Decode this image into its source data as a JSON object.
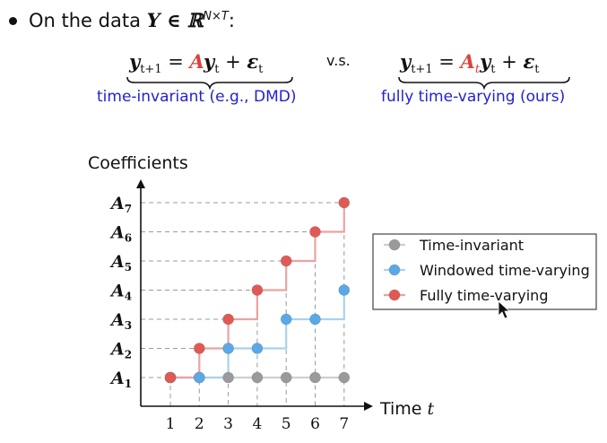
{
  "header": {
    "intro_text": "On the data",
    "intro_math": "Y ∈ ℝ",
    "intro_sup": "N×T",
    "intro_colon": ":"
  },
  "equations": {
    "left": {
      "lhs": "y",
      "lhs_sub": "t+1",
      "eq": " = ",
      "coef": "A",
      "rhs_var": "y",
      "rhs_sub": "t",
      "plus": " + ",
      "noise": "ε",
      "noise_sub": "t",
      "label": "time-invariant (e.g., DMD)"
    },
    "vs": "v.s.",
    "right": {
      "lhs": "y",
      "lhs_sub": "t+1",
      "eq": " = ",
      "coef": "A",
      "coef_sub": "t",
      "rhs_var": "y",
      "rhs_sub": "t",
      "plus": " + ",
      "noise": "ε",
      "noise_sub": "t",
      "label": "fully time-varying (ours)"
    }
  },
  "chart_data": {
    "type": "line",
    "title": "",
    "ylabel": "Coefficients",
    "xlabel": "Time",
    "xlabel_var": "t",
    "x": [
      1,
      2,
      3,
      4,
      5,
      6,
      7
    ],
    "yticks": [
      {
        "base": "A",
        "sub": "1"
      },
      {
        "base": "A",
        "sub": "2"
      },
      {
        "base": "A",
        "sub": "3"
      },
      {
        "base": "A",
        "sub": "4"
      },
      {
        "base": "A",
        "sub": "5"
      },
      {
        "base": "A",
        "sub": "6"
      },
      {
        "base": "A",
        "sub": "7"
      }
    ],
    "ylim": [
      1,
      7
    ],
    "series": [
      {
        "name": "Time-invariant",
        "values": [
          1,
          1,
          1,
          1,
          1,
          1,
          1
        ],
        "color": "#9a9a9a",
        "line_color": "#cfcfcf"
      },
      {
        "name": "Windowed time-varying",
        "values": [
          1,
          1,
          2,
          2,
          3,
          3,
          4
        ],
        "color": "#5aa9e6",
        "line_color": "#a9d2f0"
      },
      {
        "name": "Fully time-varying",
        "values": [
          1,
          2,
          3,
          4,
          5,
          6,
          7
        ],
        "color": "#e05a55",
        "line_color": "#eba3a0"
      }
    ],
    "grid": "dashed horizontal and vertical guides",
    "legend_position": "right"
  }
}
